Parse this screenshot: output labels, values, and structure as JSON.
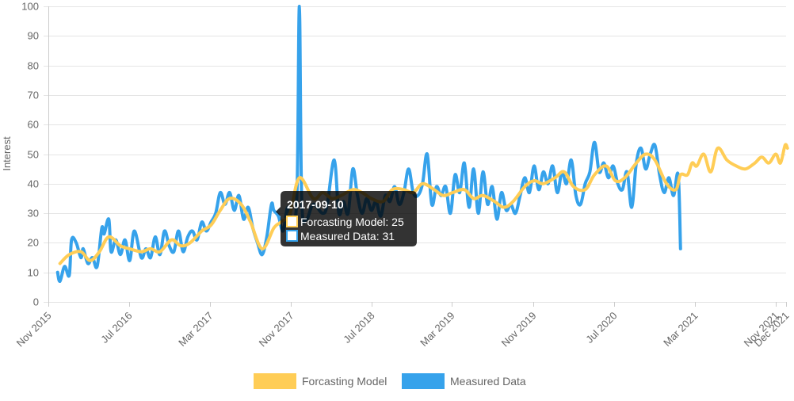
{
  "chart_data": {
    "type": "line",
    "ylabel": "Interest",
    "ylim": [
      0,
      100
    ],
    "yticks": [
      0,
      10,
      20,
      30,
      40,
      50,
      60,
      70,
      80,
      90,
      100
    ],
    "xlim": [
      "2015-11-01",
      "2021-12-01"
    ],
    "xticks": [
      {
        "date": "2015-11-01",
        "label": "Nov 2015"
      },
      {
        "date": "2016-07-01",
        "label": "Jul 2016"
      },
      {
        "date": "2017-03-01",
        "label": "Mar 2017"
      },
      {
        "date": "2017-11-01",
        "label": "Nov 2017"
      },
      {
        "date": "2018-07-01",
        "label": "Jul 2018"
      },
      {
        "date": "2019-03-01",
        "label": "Mar 2019"
      },
      {
        "date": "2019-11-01",
        "label": "Nov 2019"
      },
      {
        "date": "2020-07-01",
        "label": "Jul 2020"
      },
      {
        "date": "2021-03-01",
        "label": "Mar 2021"
      },
      {
        "date": "2021-11-01",
        "label": "Nov 2021"
      },
      {
        "date": "2021-12-01",
        "label": "Dec 2021"
      }
    ],
    "grid": true,
    "legend_position": "bottom",
    "series": [
      {
        "name": "Forcasting Model",
        "color": "#ffcd56",
        "points": [
          [
            "2015-12-06",
            13
          ],
          [
            "2016-01-03",
            16
          ],
          [
            "2016-02-07",
            17
          ],
          [
            "2016-03-06",
            14
          ],
          [
            "2016-04-03",
            17
          ],
          [
            "2016-05-01",
            22
          ],
          [
            "2016-06-05",
            19
          ],
          [
            "2016-07-03",
            18
          ],
          [
            "2016-08-07",
            17
          ],
          [
            "2016-09-04",
            18
          ],
          [
            "2016-10-02",
            17
          ],
          [
            "2016-11-06",
            21
          ],
          [
            "2016-12-04",
            19
          ],
          [
            "2017-01-01",
            20
          ],
          [
            "2017-02-05",
            24
          ],
          [
            "2017-03-05",
            26
          ],
          [
            "2017-04-02",
            31
          ],
          [
            "2017-04-30",
            35
          ],
          [
            "2017-06-04",
            33
          ],
          [
            "2017-07-02",
            27
          ],
          [
            "2017-08-06",
            18
          ],
          [
            "2017-09-10",
            25
          ],
          [
            "2017-10-01",
            27
          ],
          [
            "2017-10-29",
            30
          ],
          [
            "2017-11-26",
            42
          ],
          [
            "2018-01-07",
            35
          ],
          [
            "2018-02-04",
            37
          ],
          [
            "2018-03-04",
            35
          ],
          [
            "2018-04-01",
            36
          ],
          [
            "2018-05-06",
            38
          ],
          [
            "2018-06-03",
            37
          ],
          [
            "2018-07-01",
            35
          ],
          [
            "2018-08-05",
            34
          ],
          [
            "2018-09-02",
            38
          ],
          [
            "2018-10-07",
            38
          ],
          [
            "2018-11-04",
            37
          ],
          [
            "2018-12-02",
            40
          ],
          [
            "2019-01-06",
            38
          ],
          [
            "2019-02-03",
            36
          ],
          [
            "2019-03-03",
            37
          ],
          [
            "2019-04-07",
            38
          ],
          [
            "2019-05-05",
            35
          ],
          [
            "2019-06-02",
            36
          ],
          [
            "2019-07-07",
            34
          ],
          [
            "2019-08-04",
            32
          ],
          [
            "2019-09-01",
            34
          ],
          [
            "2019-10-06",
            39
          ],
          [
            "2019-11-03",
            41
          ],
          [
            "2019-12-01",
            40
          ],
          [
            "2020-01-05",
            42
          ],
          [
            "2020-02-02",
            44
          ],
          [
            "2020-03-01",
            39
          ],
          [
            "2020-04-05",
            38
          ],
          [
            "2020-05-03",
            43
          ],
          [
            "2020-06-07",
            46
          ],
          [
            "2020-07-05",
            41
          ],
          [
            "2020-08-02",
            42
          ],
          [
            "2020-09-06",
            47
          ],
          [
            "2020-10-04",
            50
          ],
          [
            "2020-11-01",
            48
          ],
          [
            "2020-12-06",
            40
          ],
          [
            "2021-01-03",
            38
          ],
          [
            "2021-01-17",
            43
          ],
          [
            "2021-02-07",
            43
          ],
          [
            "2021-02-21",
            47
          ],
          [
            "2021-03-07",
            46
          ],
          [
            "2021-03-28",
            50
          ],
          [
            "2021-04-18",
            44
          ],
          [
            "2021-05-09",
            52
          ],
          [
            "2021-06-06",
            48
          ],
          [
            "2021-07-04",
            46
          ],
          [
            "2021-08-01",
            45
          ],
          [
            "2021-08-29",
            47
          ],
          [
            "2021-09-19",
            49
          ],
          [
            "2021-10-10",
            47
          ],
          [
            "2021-10-31",
            50
          ],
          [
            "2021-11-14",
            47
          ],
          [
            "2021-11-28",
            53
          ],
          [
            "2021-12-05",
            52
          ]
        ]
      },
      {
        "name": "Measured Data",
        "color": "#36a2eb",
        "points": [
          [
            "2015-11-29",
            10
          ],
          [
            "2015-12-06",
            7
          ],
          [
            "2015-12-20",
            12
          ],
          [
            "2016-01-03",
            9
          ],
          [
            "2016-01-10",
            21
          ],
          [
            "2016-01-24",
            20
          ],
          [
            "2016-02-07",
            15
          ],
          [
            "2016-02-14",
            18
          ],
          [
            "2016-02-28",
            13
          ],
          [
            "2016-03-13",
            15
          ],
          [
            "2016-03-27",
            12
          ],
          [
            "2016-04-10",
            25
          ],
          [
            "2016-04-17",
            23
          ],
          [
            "2016-05-01",
            28
          ],
          [
            "2016-05-08",
            17
          ],
          [
            "2016-05-22",
            21
          ],
          [
            "2016-06-05",
            16
          ],
          [
            "2016-06-19",
            21
          ],
          [
            "2016-07-03",
            14
          ],
          [
            "2016-07-17",
            24
          ],
          [
            "2016-08-07",
            15
          ],
          [
            "2016-08-21",
            18
          ],
          [
            "2016-09-04",
            15
          ],
          [
            "2016-09-18",
            22
          ],
          [
            "2016-10-02",
            16
          ],
          [
            "2016-10-16",
            24
          ],
          [
            "2016-10-30",
            19
          ],
          [
            "2016-11-13",
            17
          ],
          [
            "2016-11-27",
            24
          ],
          [
            "2016-12-11",
            17
          ],
          [
            "2016-12-25",
            22
          ],
          [
            "2017-01-08",
            24
          ],
          [
            "2017-01-22",
            21
          ],
          [
            "2017-02-05",
            27
          ],
          [
            "2017-02-19",
            24
          ],
          [
            "2017-03-05",
            27
          ],
          [
            "2017-03-19",
            30
          ],
          [
            "2017-04-02",
            37
          ],
          [
            "2017-04-16",
            33
          ],
          [
            "2017-04-30",
            37
          ],
          [
            "2017-05-14",
            31
          ],
          [
            "2017-05-28",
            36
          ],
          [
            "2017-06-11",
            28
          ],
          [
            "2017-06-25",
            32
          ],
          [
            "2017-07-09",
            25
          ],
          [
            "2017-07-23",
            20
          ],
          [
            "2017-08-06",
            16
          ],
          [
            "2017-08-20",
            22
          ],
          [
            "2017-09-03",
            33
          ],
          [
            "2017-09-10",
            31
          ],
          [
            "2017-09-24",
            29
          ],
          [
            "2017-10-08",
            24
          ],
          [
            "2017-10-22",
            32
          ],
          [
            "2017-11-05",
            27
          ],
          [
            "2017-11-19",
            37
          ],
          [
            "2017-11-26",
            100
          ],
          [
            "2017-12-03",
            35
          ],
          [
            "2017-12-17",
            28
          ],
          [
            "2018-01-07",
            33
          ],
          [
            "2018-02-04",
            30
          ],
          [
            "2018-02-18",
            33
          ],
          [
            "2018-03-11",
            48
          ],
          [
            "2018-03-25",
            30
          ],
          [
            "2018-04-08",
            34
          ],
          [
            "2018-04-22",
            30
          ],
          [
            "2018-05-06",
            45
          ],
          [
            "2018-05-20",
            36
          ],
          [
            "2018-06-03",
            30
          ],
          [
            "2018-06-17",
            35
          ],
          [
            "2018-07-01",
            31
          ],
          [
            "2018-07-15",
            34
          ],
          [
            "2018-07-29",
            29
          ],
          [
            "2018-08-12",
            36
          ],
          [
            "2018-08-26",
            34
          ],
          [
            "2018-09-09",
            39
          ],
          [
            "2018-09-23",
            33
          ],
          [
            "2018-10-07",
            37
          ],
          [
            "2018-10-21",
            45
          ],
          [
            "2018-11-04",
            37
          ],
          [
            "2018-11-18",
            36
          ],
          [
            "2018-12-02",
            40
          ],
          [
            "2018-12-16",
            50
          ],
          [
            "2018-12-30",
            33
          ],
          [
            "2019-01-13",
            39
          ],
          [
            "2019-01-27",
            36
          ],
          [
            "2019-02-10",
            39
          ],
          [
            "2019-02-24",
            30
          ],
          [
            "2019-03-10",
            43
          ],
          [
            "2019-03-24",
            37
          ],
          [
            "2019-04-07",
            47
          ],
          [
            "2019-04-21",
            32
          ],
          [
            "2019-05-05",
            45
          ],
          [
            "2019-05-19",
            30
          ],
          [
            "2019-06-02",
            44
          ],
          [
            "2019-06-16",
            33
          ],
          [
            "2019-06-30",
            39
          ],
          [
            "2019-07-14",
            28
          ],
          [
            "2019-07-28",
            37
          ],
          [
            "2019-08-11",
            31
          ],
          [
            "2019-08-25",
            33
          ],
          [
            "2019-09-08",
            30
          ],
          [
            "2019-09-22",
            36
          ],
          [
            "2019-10-06",
            42
          ],
          [
            "2019-10-20",
            37
          ],
          [
            "2019-11-03",
            46
          ],
          [
            "2019-11-17",
            38
          ],
          [
            "2019-12-01",
            44
          ],
          [
            "2019-12-15",
            40
          ],
          [
            "2019-12-29",
            46
          ],
          [
            "2020-01-12",
            37
          ],
          [
            "2020-01-26",
            44
          ],
          [
            "2020-02-09",
            40
          ],
          [
            "2020-02-23",
            48
          ],
          [
            "2020-03-08",
            36
          ],
          [
            "2020-03-22",
            33
          ],
          [
            "2020-04-05",
            40
          ],
          [
            "2020-04-19",
            44
          ],
          [
            "2020-05-03",
            54
          ],
          [
            "2020-05-17",
            44
          ],
          [
            "2020-05-31",
            47
          ],
          [
            "2020-06-14",
            42
          ],
          [
            "2020-06-28",
            46
          ],
          [
            "2020-07-12",
            40
          ],
          [
            "2020-07-26",
            38
          ],
          [
            "2020-08-09",
            44
          ],
          [
            "2020-08-23",
            32
          ],
          [
            "2020-09-06",
            47
          ],
          [
            "2020-09-20",
            52
          ],
          [
            "2020-10-04",
            45
          ],
          [
            "2020-10-18",
            50
          ],
          [
            "2020-11-01",
            53
          ],
          [
            "2020-11-15",
            43
          ],
          [
            "2020-11-29",
            37
          ],
          [
            "2020-12-13",
            42
          ],
          [
            "2020-12-27",
            36
          ],
          [
            "2021-01-10",
            43
          ],
          [
            "2021-01-17",
            18
          ]
        ]
      }
    ],
    "tooltip": {
      "title": "2017-09-10",
      "lines": [
        {
          "series": "Forcasting Model",
          "value": 25,
          "text": "Forcasting Model: 25"
        },
        {
          "series": "Measured Data",
          "value": 31,
          "text": "Measured Data: 31"
        }
      ]
    }
  }
}
